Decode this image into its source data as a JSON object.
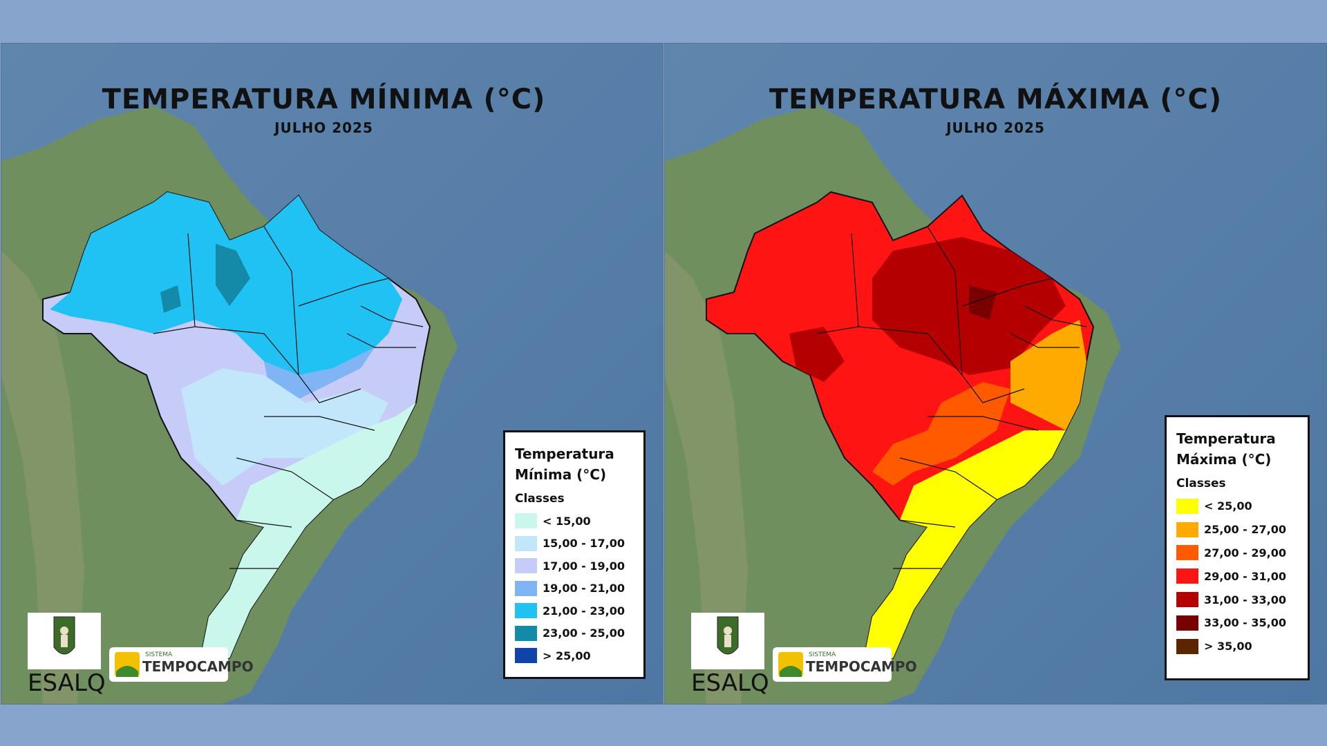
{
  "panels": [
    {
      "id": "min",
      "title": "TEMPERATURA MÍNIMA (°C)",
      "subtitle": "JULHO 2025",
      "legend": {
        "title_line1": "Temperatura",
        "title_line2": "Mínima (°C)",
        "classes_label": "Classes",
        "items": [
          {
            "label": "< 15,00",
            "color": "#c9f7ec"
          },
          {
            "label": "15,00 - 17,00",
            "color": "#c2e6fa"
          },
          {
            "label": "17,00 - 19,00",
            "color": "#c6cbf7"
          },
          {
            "label": "19,00 - 21,00",
            "color": "#7fb4f5"
          },
          {
            "label": "21,00 - 23,00",
            "color": "#1fc2f2"
          },
          {
            "label": "23,00 - 25,00",
            "color": "#1489a8"
          },
          {
            "label": "> 25,00",
            "color": "#1044a8"
          }
        ]
      }
    },
    {
      "id": "max",
      "title": "TEMPERATURA MÁXIMA (°C)",
      "subtitle": "JULHO 2025",
      "legend": {
        "title_line1": "Temperatura",
        "title_line2": "Máxima (°C)",
        "classes_label": "Classes",
        "items": [
          {
            "label": "< 25,00",
            "color": "#ffff00"
          },
          {
            "label": "25,00 - 27,00",
            "color": "#ffaa00"
          },
          {
            "label": "27,00 - 29,00",
            "color": "#ff5a00"
          },
          {
            "label": "29,00 - 31,00",
            "color": "#ff1414"
          },
          {
            "label": "31,00 - 33,00",
            "color": "#b40000"
          },
          {
            "label": "33,00 - 35,00",
            "color": "#780000"
          },
          {
            "label": "> 35,00",
            "color": "#5a2500"
          }
        ]
      }
    }
  ],
  "logos": {
    "esalq_text": "ESALQ",
    "tempocampo_small": "SISTEMA",
    "tempocampo_big": "TEMPOCAMPO"
  }
}
